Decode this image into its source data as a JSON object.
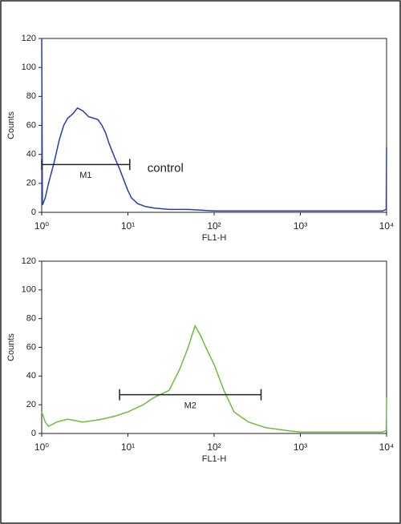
{
  "chart_data": [
    {
      "type": "line",
      "x_label": "FL1-H",
      "y_label": "Counts",
      "xscale": "log",
      "xlim": [
        1,
        10000
      ],
      "ylim": [
        0,
        120
      ],
      "xticks": [
        {
          "value": 1,
          "label": "10⁰"
        },
        {
          "value": 10,
          "label": "10¹"
        },
        {
          "value": 100,
          "label": "10²"
        },
        {
          "value": 1000,
          "label": "10³"
        },
        {
          "value": 10000,
          "label": "10⁴"
        }
      ],
      "yticks": [
        0,
        20,
        40,
        60,
        80,
        100,
        120
      ],
      "annotation": "control",
      "gates": [
        {
          "label": "M1",
          "range": [
            1,
            10.5
          ],
          "level": 33
        }
      ],
      "series": [
        {
          "color": "#2a3db0",
          "x": [
            1,
            1.02,
            1.1,
            1.2,
            1.4,
            1.6,
            1.8,
            2,
            2.3,
            2.6,
            3,
            3.5,
            4,
            4.5,
            5,
            5.5,
            6,
            7,
            8,
            9,
            10,
            11,
            13,
            16,
            20,
            30,
            50,
            100,
            200,
            500,
            1000,
            3000,
            9000,
            9900,
            10000
          ],
          "values": [
            120,
            5,
            10,
            20,
            35,
            50,
            60,
            65,
            68,
            72,
            70,
            66,
            65,
            64,
            60,
            55,
            48,
            38,
            30,
            22,
            15,
            10,
            6,
            4,
            3,
            2,
            2,
            1,
            1,
            1,
            1,
            1,
            1,
            2,
            45
          ]
        }
      ]
    },
    {
      "type": "line",
      "x_label": "FL1-H",
      "y_label": "Counts",
      "xscale": "log",
      "xlim": [
        1,
        10000
      ],
      "ylim": [
        0,
        120
      ],
      "xticks": [
        {
          "value": 1,
          "label": "10⁰"
        },
        {
          "value": 10,
          "label": "10¹"
        },
        {
          "value": 100,
          "label": "10²"
        },
        {
          "value": 1000,
          "label": "10³"
        },
        {
          "value": 10000,
          "label": "10⁴"
        }
      ],
      "yticks": [
        0,
        20,
        40,
        60,
        80,
        100,
        120
      ],
      "gates": [
        {
          "label": "M2",
          "range": [
            8,
            350
          ],
          "level": 27
        }
      ],
      "series": [
        {
          "color": "#6cbf3a",
          "x": [
            1,
            1.1,
            1.2,
            1.5,
            2,
            3,
            4,
            5,
            7,
            10,
            15,
            20,
            30,
            40,
            50,
            60,
            70,
            80,
            100,
            130,
            170,
            250,
            400,
            700,
            1000,
            3000,
            9000,
            9900,
            10000
          ],
          "values": [
            15,
            8,
            5,
            8,
            10,
            8,
            9,
            10,
            12,
            15,
            20,
            25,
            30,
            45,
            60,
            75,
            68,
            60,
            48,
            30,
            15,
            8,
            4,
            2,
            1,
            1,
            1,
            2,
            25
          ]
        }
      ]
    }
  ]
}
